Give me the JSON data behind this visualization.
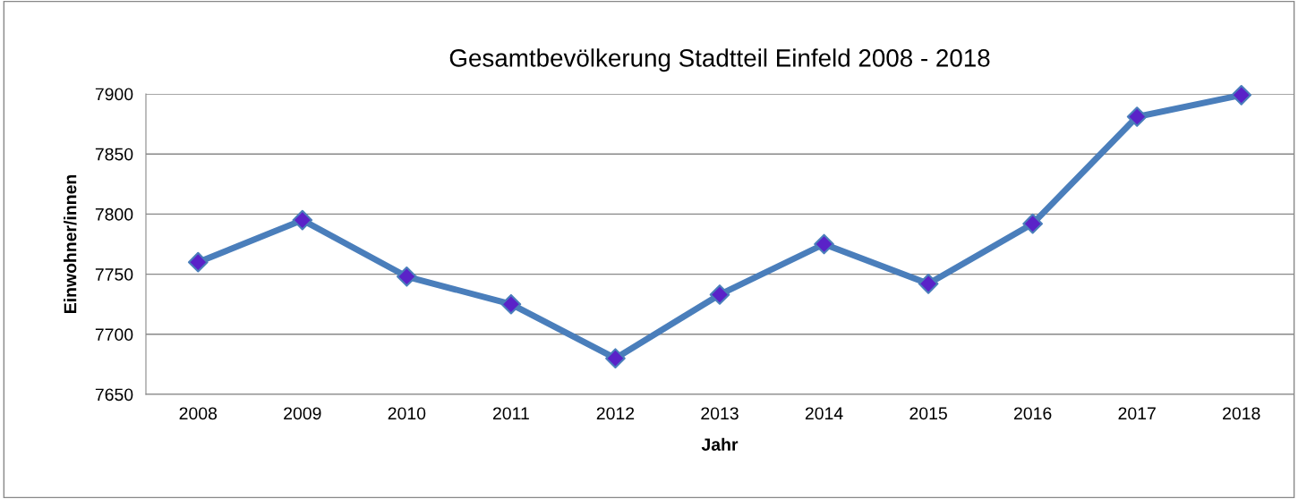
{
  "chart_data": {
    "type": "line",
    "title": "Gesamtbevölkerung Stadtteil Einfeld 2008 - 2018",
    "xlabel": "Jahr",
    "ylabel": "Einwohner/innen",
    "categories": [
      "2008",
      "2009",
      "2010",
      "2011",
      "2012",
      "2013",
      "2014",
      "2015",
      "2016",
      "2017",
      "2018"
    ],
    "series": [
      {
        "color": "#4a7ebb",
        "colors": [
          "#5a22c8",
          "#5a22c8",
          "#5a22c8",
          "#5a22c8",
          "#5a22c8",
          "#5a22c8",
          "#5a22c8",
          "#5a22c8",
          "#5a22c8",
          "#5a22c8",
          "#5a22c8"
        ],
        "values": [
          7760,
          7795,
          7748,
          7725,
          7680,
          7733,
          7775,
          7742,
          7792,
          7881,
          7899
        ]
      }
    ],
    "ylim": [
      7650,
      7900
    ],
    "yticks": [
      7650,
      7700,
      7750,
      7800,
      7850,
      7900
    ],
    "grid": "y",
    "marker": "diamond",
    "line_style": "solid"
  }
}
